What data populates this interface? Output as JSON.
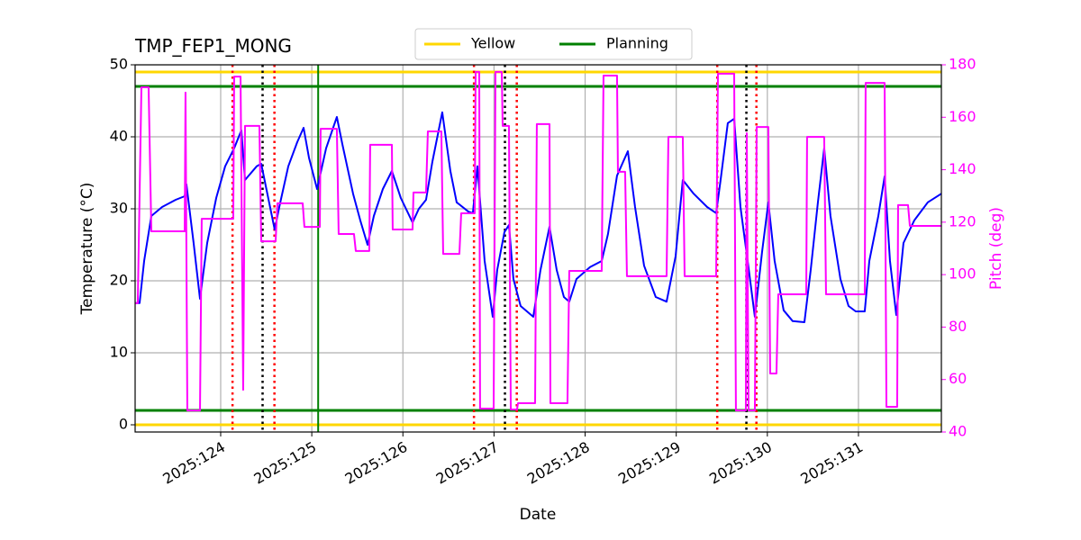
{
  "chart_data": {
    "type": "line",
    "title": "TMP_FEP1_MONG",
    "x_label": "Date",
    "y_label": "Temperature (°C)",
    "y2_label": "Pitch (deg)",
    "y2_color": "#ff00ff",
    "grid": true,
    "legend": "upper center",
    "xlim": [
      123.061,
      131.91
    ],
    "xticks": [
      {
        "value": 124,
        "label": "2025:124"
      },
      {
        "value": 125,
        "label": "2025:125"
      },
      {
        "value": 126,
        "label": "2025:126"
      },
      {
        "value": 127,
        "label": "2025:127"
      },
      {
        "value": 128,
        "label": "2025:128"
      },
      {
        "value": 129,
        "label": "2025:129"
      },
      {
        "value": 130,
        "label": "2025:130"
      },
      {
        "value": 131,
        "label": "2025:131"
      }
    ],
    "ylim": [
      -1,
      50
    ],
    "yticks": [
      0,
      10,
      20,
      30,
      40,
      50
    ],
    "y2lim": [
      40,
      180
    ],
    "y2ticks": [
      40,
      60,
      80,
      100,
      120,
      140,
      160,
      180
    ],
    "limits": [
      {
        "name": "Yellow",
        "color": "#ffd700",
        "values": [
          0,
          49
        ]
      },
      {
        "name": "Planning",
        "color": "#008000",
        "values": [
          2,
          47
        ]
      }
    ],
    "vlines": [
      {
        "x": 124.13,
        "color": "#ff0000",
        "style": "dotted"
      },
      {
        "x": 124.59,
        "color": "#ff0000",
        "style": "dotted"
      },
      {
        "x": 126.78,
        "color": "#ff0000",
        "style": "dotted"
      },
      {
        "x": 127.25,
        "color": "#ff0000",
        "style": "dotted"
      },
      {
        "x": 129.45,
        "color": "#ff0000",
        "style": "dotted"
      },
      {
        "x": 129.88,
        "color": "#ff0000",
        "style": "dotted"
      },
      {
        "x": 124.46,
        "color": "#000000",
        "style": "dotted"
      },
      {
        "x": 127.12,
        "color": "#000000",
        "style": "dotted"
      },
      {
        "x": 129.77,
        "color": "#000000",
        "style": "dotted"
      },
      {
        "x": 125.07,
        "color": "#008000",
        "style": "solid"
      }
    ],
    "series": [
      {
        "color": "#0000ff",
        "axis": "y",
        "x": [
          123.061,
          123.11,
          123.16,
          123.239,
          123.357,
          123.506,
          123.605,
          123.624,
          123.703,
          123.773,
          123.852,
          123.951,
          124.049,
          124.148,
          124.227,
          124.267,
          124.395,
          124.445,
          124.593,
          124.643,
          124.742,
          124.84,
          124.91,
          124.969,
          125.058,
          125.157,
          125.275,
          125.335,
          125.453,
          125.532,
          125.612,
          125.681,
          125.78,
          125.879,
          125.977,
          126.106,
          126.175,
          126.254,
          126.323,
          126.432,
          126.521,
          126.59,
          126.719,
          126.768,
          126.818,
          126.897,
          126.986,
          127.035,
          127.114,
          127.164,
          127.213,
          127.292,
          127.431,
          127.51,
          127.609,
          127.688,
          127.767,
          127.826,
          127.905,
          128.054,
          128.182,
          128.251,
          128.35,
          128.469,
          128.548,
          128.647,
          128.775,
          128.894,
          128.993,
          129.072,
          129.191,
          129.339,
          129.438,
          129.487,
          129.566,
          129.636,
          129.705,
          129.784,
          129.863,
          129.942,
          130.011,
          130.08,
          130.179,
          130.278,
          130.407,
          130.476,
          130.555,
          130.624,
          130.693,
          130.802,
          130.891,
          130.97,
          131.069,
          131.119,
          131.218,
          131.287,
          131.346,
          131.415,
          131.494,
          131.613,
          131.761,
          131.91
        ],
        "values": [
          16.9,
          16.9,
          22.75,
          29,
          30.25,
          31.25,
          31.75,
          33.4,
          25.25,
          17.5,
          25.25,
          31.5,
          35.9,
          38.4,
          40.9,
          34,
          35.9,
          36.25,
          27.1,
          30.25,
          35.9,
          39.25,
          41.25,
          37.1,
          32.75,
          38.4,
          42.75,
          39,
          32.1,
          28.4,
          25,
          29,
          32.75,
          35.25,
          31.5,
          28.1,
          30,
          31.25,
          36.5,
          43.4,
          35.25,
          30.9,
          29.6,
          29.4,
          35.9,
          22.75,
          15,
          21.5,
          26.75,
          27.75,
          20.25,
          16.5,
          15,
          21.5,
          27.5,
          21.5,
          17.75,
          17.1,
          20.25,
          21.9,
          22.75,
          26.5,
          34.6,
          38,
          30.25,
          22.1,
          17.75,
          17.1,
          23.4,
          34,
          32.1,
          30.25,
          29.4,
          34,
          41.9,
          42.5,
          30.25,
          22.75,
          15,
          24,
          30.9,
          22.75,
          15.9,
          14.4,
          14.25,
          21.5,
          30.9,
          38.4,
          29,
          20.25,
          16.5,
          15.75,
          15.75,
          22.75,
          29,
          34.5,
          22.75,
          15.25,
          25.25,
          28.4,
          30.9,
          32.1
        ]
      },
      {
        "color": "#ff00ff",
        "axis": "y2",
        "x": [
          123.061,
          123.09,
          123.13,
          123.209,
          123.239,
          123.605,
          123.614,
          123.634,
          123.773,
          123.792,
          124.138,
          124.148,
          124.218,
          124.247,
          124.267,
          124.425,
          124.445,
          124.603,
          124.623,
          124.9,
          124.919,
          125.088,
          125.097,
          125.275,
          125.295,
          125.463,
          125.483,
          125.631,
          125.641,
          125.879,
          125.888,
          126.106,
          126.116,
          126.254,
          126.274,
          126.422,
          126.442,
          126.62,
          126.64,
          126.788,
          126.798,
          126.838,
          126.847,
          126.996,
          127.016,
          127.085,
          127.095,
          127.164,
          127.184,
          127.253,
          127.263,
          127.451,
          127.47,
          127.609,
          127.619,
          127.806,
          127.826,
          128.182,
          128.202,
          128.35,
          128.36,
          128.439,
          128.459,
          128.894,
          128.914,
          129.072,
          129.092,
          129.438,
          129.458,
          129.636,
          129.655,
          129.764,
          129.774,
          129.794,
          129.863,
          129.883,
          130.011,
          130.031,
          130.1,
          130.12,
          130.427,
          130.436,
          130.624,
          130.644,
          131.069,
          131.079,
          131.287,
          131.307,
          131.425,
          131.435,
          131.544,
          131.564,
          131.91
        ],
        "values": [
          89.1,
          89.1,
          171.4,
          171.4,
          116.5,
          116.5,
          169.4,
          48.2,
          48.2,
          121.3,
          121.3,
          175.5,
          175.5,
          56.1,
          156.7,
          156.7,
          112.7,
          112.7,
          127.2,
          127.2,
          118.2,
          118.2,
          155.6,
          155.6,
          115.5,
          115.5,
          109,
          109,
          149.5,
          149.5,
          117.2,
          117.2,
          131.3,
          131.3,
          154.6,
          154.6,
          107.9,
          107.9,
          123.4,
          123.4,
          177.3,
          177.3,
          48.9,
          48.9,
          177.3,
          177.3,
          156.7,
          156.7,
          48.6,
          48.6,
          51,
          51,
          157.4,
          157.4,
          51,
          51,
          101.4,
          101.4,
          175.9,
          175.9,
          139.2,
          139.2,
          99.4,
          99.4,
          152.5,
          152.5,
          99.4,
          99.4,
          176.6,
          176.6,
          48.2,
          48.2,
          153.9,
          48.2,
          48.2,
          156.3,
          156.3,
          62.3,
          62.3,
          92.5,
          92.5,
          152.5,
          152.5,
          92.5,
          92.5,
          173.1,
          173.1,
          49.6,
          49.6,
          126.5,
          126.5,
          118.6,
          118.6
        ]
      }
    ]
  }
}
